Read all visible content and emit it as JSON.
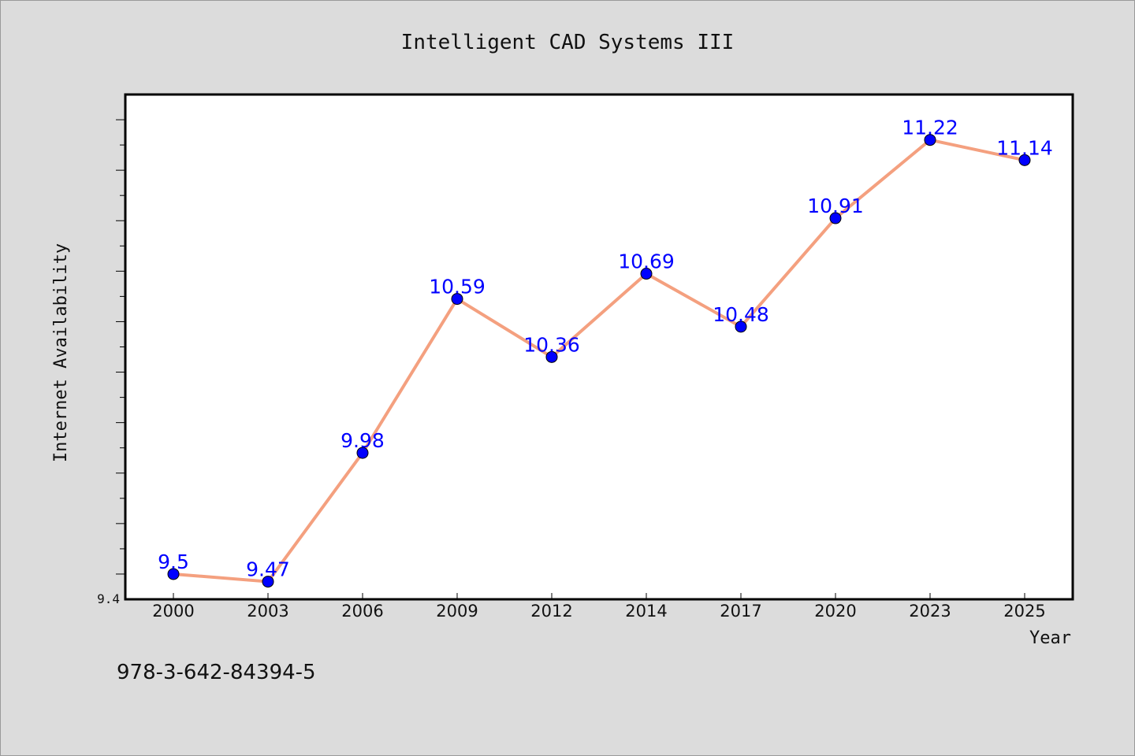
{
  "chart_data": {
    "type": "line",
    "title": "Intelligent CAD Systems III",
    "xlabel": "Year",
    "ylabel": "Internet Availability",
    "categories": [
      "2000",
      "2003",
      "2006",
      "2009",
      "2012",
      "2014",
      "2017",
      "2020",
      "2023",
      "2025"
    ],
    "series": [
      {
        "values": [
          9.5,
          9.47,
          9.98,
          10.59,
          10.36,
          10.69,
          10.48,
          10.91,
          11.22,
          11.14
        ],
        "labels": [
          "9.5",
          "9.47",
          "9.98",
          "10.59",
          "10.36",
          "10.69",
          "10.48",
          "10.91",
          "11.22",
          "11.14"
        ],
        "line_color": "#f4a07f",
        "marker_color": "#0000ff"
      }
    ],
    "ylim": [
      9.4,
      11.4
    ],
    "yticks_labeled": [
      "9.4"
    ],
    "grid": false,
    "legend": "none"
  },
  "footer": {
    "isbn": "978-3-642-84394-5"
  }
}
